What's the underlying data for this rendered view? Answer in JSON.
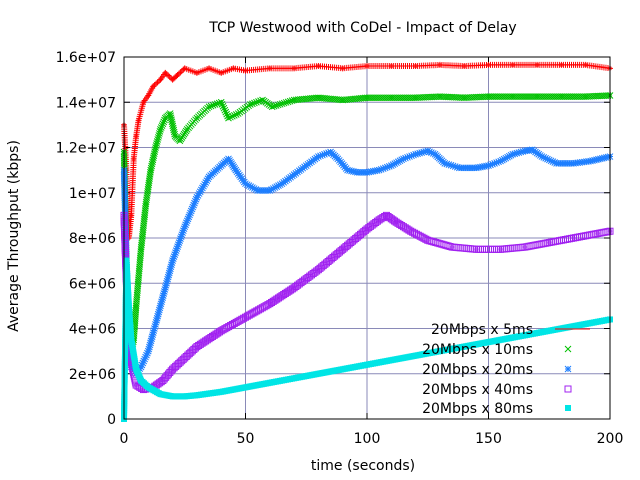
{
  "chart_data": {
    "type": "scatter",
    "title": "TCP Westwood with CoDel - Impact of Delay",
    "xlabel": "time (seconds)",
    "ylabel": "Average Throughput (kbps)",
    "xlim": [
      0,
      200
    ],
    "ylim": [
      0,
      16000000
    ],
    "xticks": [
      0,
      50,
      100,
      150,
      200
    ],
    "xtick_labels": [
      "0",
      "50",
      "100",
      "150",
      "200"
    ],
    "yticks": [
      0,
      2000000,
      4000000,
      6000000,
      8000000,
      10000000,
      12000000,
      14000000,
      16000000
    ],
    "ytick_labels": [
      "0",
      "2e+06",
      "4e+06",
      "6e+06",
      "8e+06",
      "1e+07",
      "1.2e+07",
      "1.4e+07",
      "1.6e+07"
    ],
    "grid": true,
    "legend_position": "bottom-right",
    "series": [
      {
        "name": "20Mbps x 5ms",
        "color": "#ff0000",
        "marker": "plus",
        "points": [
          [
            0,
            13000000
          ],
          [
            1,
            11000000
          ],
          [
            2,
            8000000
          ],
          [
            3,
            9000000
          ],
          [
            4,
            11500000
          ],
          [
            5,
            12500000
          ],
          [
            6,
            13200000
          ],
          [
            8,
            14000000
          ],
          [
            10,
            14300000
          ],
          [
            12,
            14700000
          ],
          [
            15,
            15000000
          ],
          [
            17,
            15300000
          ],
          [
            20,
            15000000
          ],
          [
            22,
            15200000
          ],
          [
            25,
            15500000
          ],
          [
            30,
            15300000
          ],
          [
            35,
            15500000
          ],
          [
            40,
            15300000
          ],
          [
            45,
            15500000
          ],
          [
            50,
            15400000
          ],
          [
            60,
            15500000
          ],
          [
            70,
            15500000
          ],
          [
            80,
            15600000
          ],
          [
            90,
            15500000
          ],
          [
            100,
            15600000
          ],
          [
            110,
            15600000
          ],
          [
            120,
            15600000
          ],
          [
            130,
            15650000
          ],
          [
            140,
            15600000
          ],
          [
            150,
            15650000
          ],
          [
            160,
            15650000
          ],
          [
            170,
            15650000
          ],
          [
            180,
            15650000
          ],
          [
            190,
            15650000
          ],
          [
            200,
            15500000
          ]
        ]
      },
      {
        "name": "20Mbps x 10ms",
        "color": "#00c000",
        "marker": "x",
        "points": [
          [
            0,
            11800000
          ],
          [
            1,
            7000000
          ],
          [
            2,
            4000000
          ],
          [
            3,
            3000000
          ],
          [
            4,
            3500000
          ],
          [
            5,
            5000000
          ],
          [
            7,
            7500000
          ],
          [
            9,
            9500000
          ],
          [
            11,
            11000000
          ],
          [
            13,
            12000000
          ],
          [
            15,
            12800000
          ],
          [
            17,
            13300000
          ],
          [
            19,
            13500000
          ],
          [
            21,
            12500000
          ],
          [
            23,
            12300000
          ],
          [
            26,
            12800000
          ],
          [
            30,
            13300000
          ],
          [
            35,
            13800000
          ],
          [
            40,
            14000000
          ],
          [
            43,
            13300000
          ],
          [
            47,
            13500000
          ],
          [
            52,
            13900000
          ],
          [
            57,
            14100000
          ],
          [
            61,
            13800000
          ],
          [
            70,
            14100000
          ],
          [
            80,
            14200000
          ],
          [
            90,
            14100000
          ],
          [
            100,
            14200000
          ],
          [
            110,
            14200000
          ],
          [
            120,
            14200000
          ],
          [
            130,
            14250000
          ],
          [
            140,
            14200000
          ],
          [
            150,
            14250000
          ],
          [
            160,
            14250000
          ],
          [
            170,
            14250000
          ],
          [
            180,
            14250000
          ],
          [
            190,
            14250000
          ],
          [
            200,
            14300000
          ]
        ]
      },
      {
        "name": "20Mbps x 20ms",
        "color": "#1e7fff",
        "marker": "star",
        "points": [
          [
            0,
            11000000
          ],
          [
            1,
            7000000
          ],
          [
            2,
            4000000
          ],
          [
            3,
            2300000
          ],
          [
            5,
            2000000
          ],
          [
            7,
            2300000
          ],
          [
            10,
            3000000
          ],
          [
            15,
            5000000
          ],
          [
            20,
            7000000
          ],
          [
            25,
            8500000
          ],
          [
            30,
            9800000
          ],
          [
            35,
            10700000
          ],
          [
            40,
            11200000
          ],
          [
            43,
            11500000
          ],
          [
            46,
            11000000
          ],
          [
            50,
            10400000
          ],
          [
            55,
            10100000
          ],
          [
            60,
            10100000
          ],
          [
            65,
            10400000
          ],
          [
            70,
            10800000
          ],
          [
            75,
            11200000
          ],
          [
            80,
            11600000
          ],
          [
            85,
            11800000
          ],
          [
            88,
            11500000
          ],
          [
            92,
            11000000
          ],
          [
            96,
            10900000
          ],
          [
            100,
            10900000
          ],
          [
            105,
            11000000
          ],
          [
            110,
            11200000
          ],
          [
            115,
            11500000
          ],
          [
            120,
            11700000
          ],
          [
            125,
            11850000
          ],
          [
            128,
            11700000
          ],
          [
            132,
            11300000
          ],
          [
            138,
            11100000
          ],
          [
            145,
            11100000
          ],
          [
            150,
            11200000
          ],
          [
            155,
            11400000
          ],
          [
            160,
            11700000
          ],
          [
            165,
            11850000
          ],
          [
            168,
            11900000
          ],
          [
            172,
            11600000
          ],
          [
            178,
            11300000
          ],
          [
            185,
            11300000
          ],
          [
            192,
            11400000
          ],
          [
            200,
            11600000
          ]
        ]
      },
      {
        "name": "20Mbps x 40ms",
        "color": "#a020f0",
        "marker": "square-open",
        "points": [
          [
            0,
            9000000
          ],
          [
            1,
            6000000
          ],
          [
            2,
            4000000
          ],
          [
            3,
            2500000
          ],
          [
            5,
            1500000
          ],
          [
            8,
            1300000
          ],
          [
            12,
            1400000
          ],
          [
            16,
            1700000
          ],
          [
            20,
            2200000
          ],
          [
            30,
            3200000
          ],
          [
            40,
            3900000
          ],
          [
            50,
            4500000
          ],
          [
            60,
            5100000
          ],
          [
            70,
            5800000
          ],
          [
            80,
            6600000
          ],
          [
            90,
            7500000
          ],
          [
            100,
            8400000
          ],
          [
            105,
            8800000
          ],
          [
            108,
            9000000
          ],
          [
            112,
            8700000
          ],
          [
            118,
            8300000
          ],
          [
            125,
            7900000
          ],
          [
            135,
            7600000
          ],
          [
            145,
            7500000
          ],
          [
            155,
            7500000
          ],
          [
            165,
            7600000
          ],
          [
            175,
            7800000
          ],
          [
            185,
            8000000
          ],
          [
            195,
            8200000
          ],
          [
            200,
            8300000
          ]
        ]
      },
      {
        "name": "20Mbps x 80ms",
        "color": "#00e5e5",
        "marker": "square-filled",
        "points": [
          [
            0,
            0
          ],
          [
            1,
            7000000
          ],
          [
            2,
            5000000
          ],
          [
            3,
            3500000
          ],
          [
            5,
            2200000
          ],
          [
            7,
            1700000
          ],
          [
            10,
            1400000
          ],
          [
            15,
            1100000
          ],
          [
            20,
            1000000
          ],
          [
            25,
            1000000
          ],
          [
            30,
            1050000
          ],
          [
            40,
            1200000
          ],
          [
            50,
            1400000
          ],
          [
            60,
            1600000
          ],
          [
            70,
            1800000
          ],
          [
            80,
            2000000
          ],
          [
            90,
            2200000
          ],
          [
            100,
            2400000
          ],
          [
            110,
            2600000
          ],
          [
            120,
            2800000
          ],
          [
            130,
            3000000
          ],
          [
            140,
            3200000
          ],
          [
            150,
            3400000
          ],
          [
            160,
            3600000
          ],
          [
            170,
            3800000
          ],
          [
            180,
            4000000
          ],
          [
            190,
            4200000
          ],
          [
            200,
            4400000
          ]
        ]
      }
    ]
  }
}
